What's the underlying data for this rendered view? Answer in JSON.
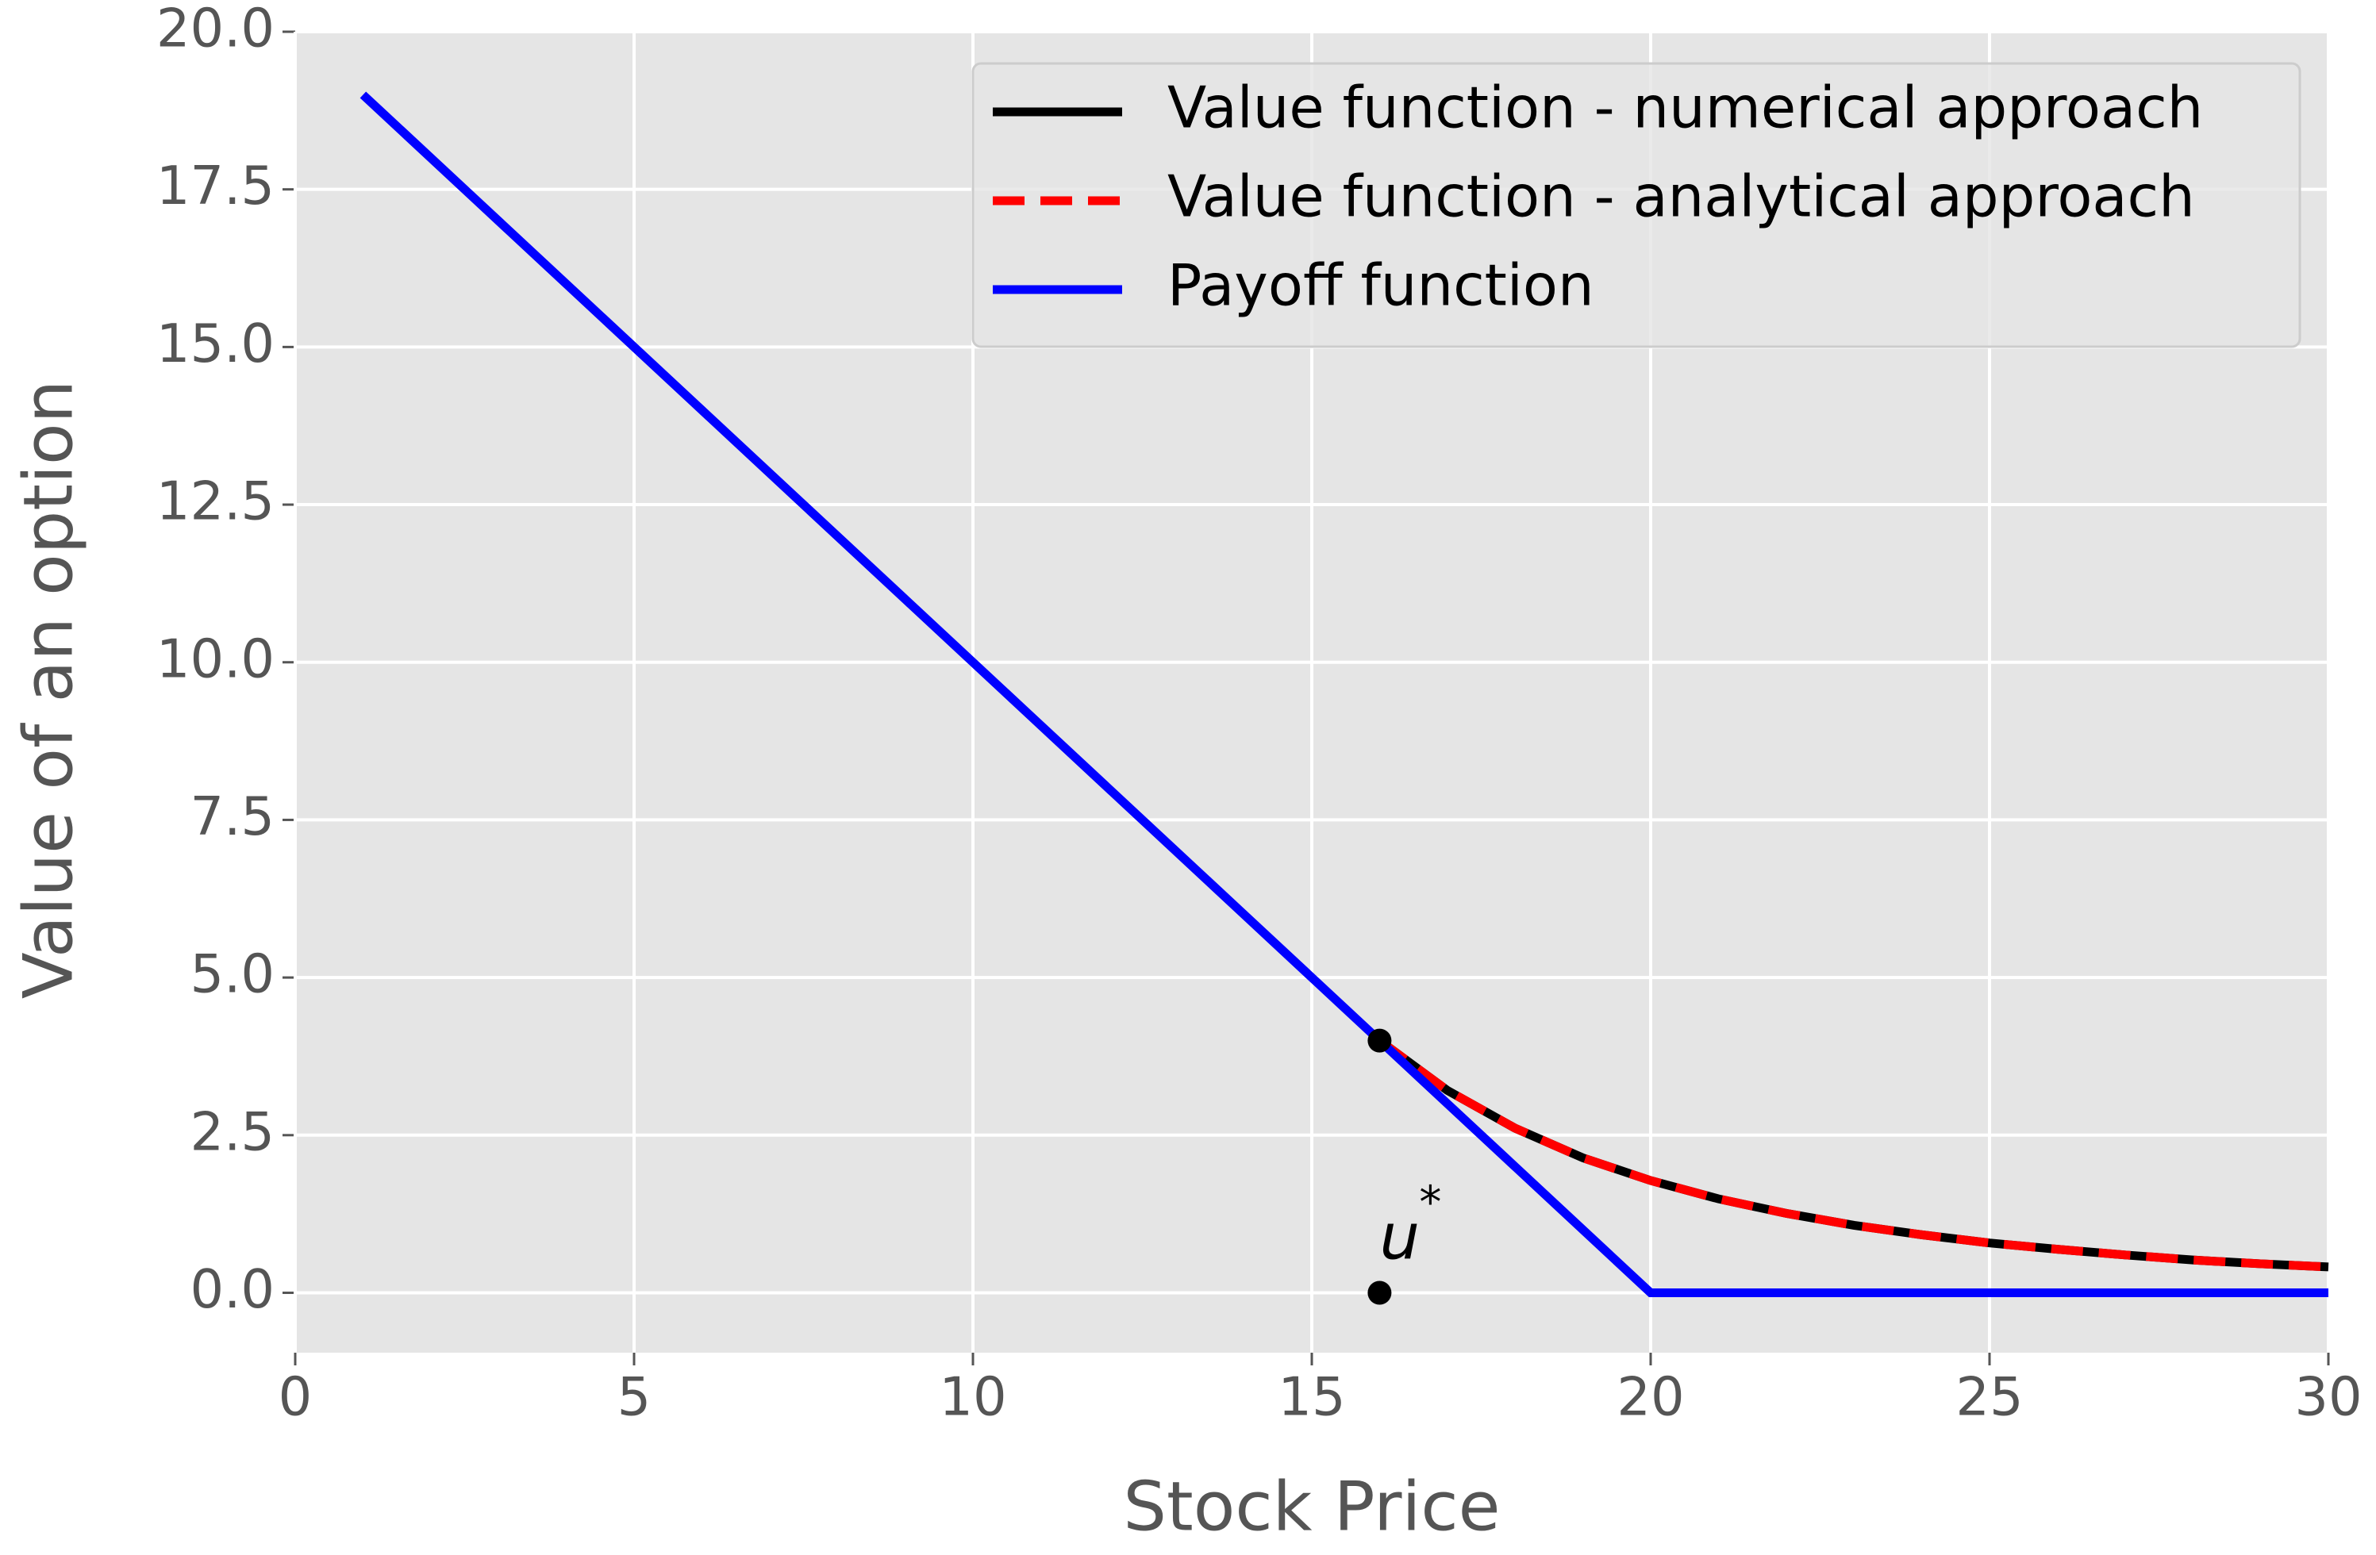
{
  "chart_data": {
    "type": "line",
    "xlabel": "Stock Price",
    "ylabel": "Value of an option",
    "xlim": [
      0,
      30
    ],
    "ylim": [
      -0.95,
      20
    ],
    "xticks": [
      0,
      5,
      10,
      15,
      20,
      25,
      30
    ],
    "yticks": [
      {
        "value": 0,
        "label": "0.0"
      },
      2.5,
      {
        "value": 5,
        "label": "5.0"
      },
      7.5,
      {
        "value": 10,
        "label": "10.0"
      },
      12.5,
      {
        "value": 15,
        "label": "15.0"
      },
      17.5,
      {
        "value": 20,
        "label": "20.0"
      }
    ],
    "grid": true,
    "legend": "upper right",
    "series": [
      {
        "name": "Value function - numerical approach",
        "color": "#000000",
        "style": "solid",
        "x": [
          16,
          17,
          18,
          19,
          20,
          21,
          22,
          23,
          24,
          25,
          26,
          27,
          28,
          29,
          30
        ],
        "values": [
          4,
          3.21,
          2.61,
          2.14,
          1.78,
          1.49,
          1.26,
          1.07,
          0.92,
          0.79,
          0.69,
          0.6,
          0.52,
          0.46,
          0.41
        ]
      },
      {
        "name": "Value function - analytical approach",
        "color": "#ff0000",
        "style": "dashed",
        "x": [
          16,
          17,
          18,
          19,
          20,
          21,
          22,
          23,
          24,
          25,
          26,
          27,
          28,
          29,
          30
        ],
        "values": [
          4,
          3.21,
          2.61,
          2.14,
          1.78,
          1.49,
          1.26,
          1.07,
          0.92,
          0.79,
          0.69,
          0.6,
          0.52,
          0.46,
          0.41
        ]
      },
      {
        "name": "Payoff function",
        "color": "#0000ff",
        "style": "solid",
        "x": [
          1,
          20,
          30
        ],
        "values": [
          19,
          0,
          0
        ]
      }
    ],
    "points": {
      "color": "#000000",
      "x": [
        16,
        16
      ],
      "values": [
        4,
        0
      ]
    },
    "annotation": {
      "text": "u",
      "superscript": "*",
      "x": 16,
      "y": 0
    }
  }
}
